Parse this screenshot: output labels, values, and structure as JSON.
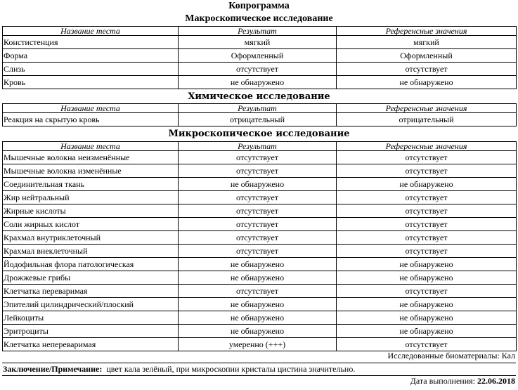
{
  "title": "Копрограмма",
  "headers": [
    "Название теста",
    "Результат",
    "Референсные значения"
  ],
  "sections": [
    {
      "title": "Макроскопическое исследование",
      "rows": [
        [
          "Констистенция",
          "мягкий",
          "мягкий"
        ],
        [
          "Форма",
          "Оформленный",
          "Оформленный"
        ],
        [
          "Слизь",
          "отсутствует",
          "отсутствует"
        ],
        [
          "Кровь",
          "не обнаружено",
          "не обнаружено"
        ]
      ]
    },
    {
      "title": "Химическое исследование",
      "rows": [
        [
          "Реакция на скрытую кровь",
          "отрицательный",
          "отрицательный"
        ]
      ]
    },
    {
      "title": "Микроскопическое исследование",
      "rows": [
        [
          "Мышечные волокна неизменённые",
          "отсутствует",
          "отсутствует"
        ],
        [
          "Мышечные волокна изменённые",
          "отсутствует",
          "отсутствует"
        ],
        [
          "Соединительная ткань",
          "не обнаружено",
          "не обнаружено"
        ],
        [
          "Жир нейтральный",
          "отсутствует",
          "отсутствует"
        ],
        [
          "Жирные кислоты",
          "отсутствует",
          "отсутствует"
        ],
        [
          "Соли жирных кислот",
          "отсутствует",
          "отсутствует"
        ],
        [
          "Крахмал внутриклеточный",
          "отсутствует",
          "отсутствует"
        ],
        [
          "Крахмал внеклеточный",
          "отсутствует",
          "отсутствует"
        ],
        [
          "Йодофильная флора патологическая",
          "не обнаружено",
          "не обнаружено"
        ],
        [
          "Дрожжевые грибы",
          "не обнаружено",
          "не обнаружено"
        ],
        [
          "Клетчатка переваримая",
          "отсутствует",
          "отсутствует"
        ],
        [
          "Эпителий цилиндрический/плоский",
          "не обнаружено",
          "не обнаружено"
        ],
        [
          "Лейкоциты",
          "не обнаружено",
          "не обнаружено"
        ],
        [
          "Эритроциты",
          "не обнаружено",
          "не обнаружено"
        ],
        [
          "Клетчатка непереваримая",
          "умеренно (+++)",
          "отсутствует"
        ]
      ]
    }
  ],
  "biomaterials": "Исследованные биоматериалы: Кал",
  "conclusion": {
    "label": "Заключение/Примечание:",
    "text": "цвет кала зелёный, при микроскопии кристалы цистина значительно."
  },
  "date": {
    "label": "Дата выполнения:",
    "value": "22.06.2018"
  }
}
